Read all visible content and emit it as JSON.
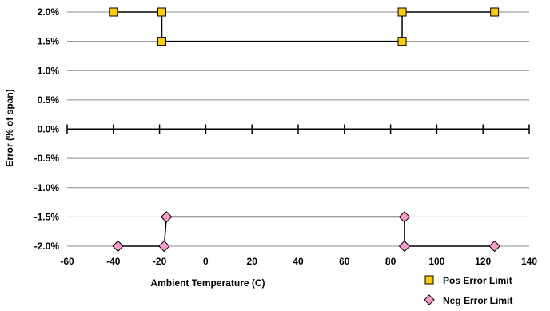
{
  "chart_data": {
    "type": "line",
    "title": "",
    "xlabel": "Ambient Temperature (C)",
    "ylabel": "Error (% of span)",
    "xlim": [
      -60,
      140
    ],
    "ylim": [
      -2.0,
      2.0
    ],
    "x_ticks": [
      -60,
      -40,
      -20,
      0,
      20,
      40,
      60,
      80,
      100,
      120,
      140
    ],
    "x_tick_labels": [
      "-60",
      "-40",
      "-20",
      "0",
      "20",
      "40",
      "60",
      "80",
      "100",
      "120",
      "140"
    ],
    "y_ticks": [
      2.0,
      1.5,
      1.0,
      0.5,
      0.0,
      -0.5,
      -1.0,
      -1.5,
      -2.0
    ],
    "y_tick_labels": [
      "2.0%",
      "1.5%",
      "1.0%",
      "0.5%",
      "0.0%",
      "-0.5%",
      "-1.0%",
      "-1.5%",
      "-2.0%"
    ],
    "grid": "horizontal",
    "legend_position": "bottom-right",
    "series": [
      {
        "name": "Pos Error Limit",
        "marker": "square",
        "color": "#FFCC00",
        "points": [
          {
            "x": -40,
            "y": 2.0
          },
          {
            "x": -19,
            "y": 2.0
          },
          {
            "x": -19,
            "y": 1.5
          },
          {
            "x": 85,
            "y": 1.5
          },
          {
            "x": 85,
            "y": 2.0
          },
          {
            "x": 125,
            "y": 2.0
          }
        ]
      },
      {
        "name": "Neg Error Limit",
        "marker": "diamond",
        "color": "#FF99CC",
        "points": [
          {
            "x": -38,
            "y": -2.0
          },
          {
            "x": -18,
            "y": -2.0
          },
          {
            "x": -17,
            "y": -1.5
          },
          {
            "x": 86,
            "y": -1.5
          },
          {
            "x": 86,
            "y": -2.0
          },
          {
            "x": 125,
            "y": -2.0
          }
        ]
      }
    ]
  }
}
